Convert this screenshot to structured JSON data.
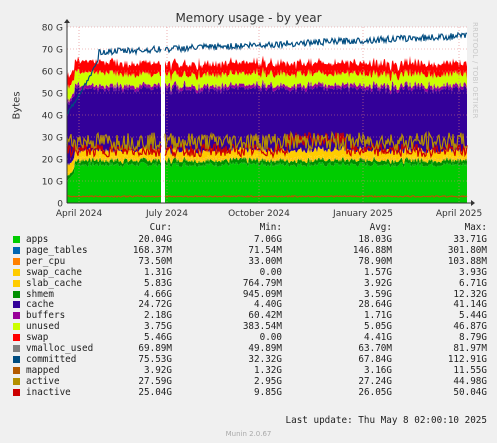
{
  "chart_data": {
    "type": "area",
    "title": "Memory usage - by year",
    "ylabel": "Bytes",
    "ylim": [
      0,
      80
    ],
    "y_unit": "G",
    "y_ticks": [
      "0",
      "10 G",
      "20 G",
      "30 G",
      "40 G",
      "50 G",
      "60 G",
      "70 G",
      "80 G"
    ],
    "x_ticks": [
      "April 2024",
      "July 2024",
      "October 2024",
      "January 2025",
      "April 2025"
    ],
    "grid": true,
    "series": [
      {
        "name": "apps",
        "color": "#00cc00",
        "avg": 18.0
      },
      {
        "name": "page_tables",
        "color": "#0066b3",
        "avg": 0.15
      },
      {
        "name": "per_cpu",
        "color": "#ff8000",
        "avg": 0.08
      },
      {
        "name": "swap_cache",
        "color": "#ffcc00",
        "avg": 1.57
      },
      {
        "name": "slab_cache",
        "color": "#ffcc00",
        "avg": 3.92
      },
      {
        "name": "shmem",
        "color": "#008f00",
        "avg": 3.59
      },
      {
        "name": "cache",
        "color": "#330099",
        "avg": 28.6
      },
      {
        "name": "buffers",
        "color": "#990099",
        "avg": 1.71
      },
      {
        "name": "unused",
        "color": "#ccff00",
        "avg": 5.05
      },
      {
        "name": "swap",
        "color": "#ff0000",
        "avg": 4.41
      },
      {
        "name": "vmalloc_used",
        "color": "#808080",
        "avg": 0.064
      },
      {
        "name": "committed",
        "color": "#004c80",
        "avg": 67.8
      },
      {
        "name": "mapped",
        "color": "#b35a00",
        "avg": 3.16
      },
      {
        "name": "active",
        "color": "#b38f00",
        "avg": 27.2
      },
      {
        "name": "inactive",
        "color": "#cc0000",
        "avg": 26.1
      }
    ]
  },
  "legend": {
    "headers": {
      "cur": "Cur:",
      "min": "Min:",
      "avg": "Avg:",
      "max": "Max:"
    },
    "rows": [
      {
        "name": "apps",
        "cur": "20.04G",
        "min": "7.06G",
        "avg": "18.03G",
        "max": "33.71G",
        "color": "#00cc00"
      },
      {
        "name": "page_tables",
        "cur": "168.37M",
        "min": "71.54M",
        "avg": "146.88M",
        "max": "301.80M",
        "color": "#0066b3"
      },
      {
        "name": "per_cpu",
        "cur": "73.50M",
        "min": "33.00M",
        "avg": "78.90M",
        "max": "103.88M",
        "color": "#ff8000"
      },
      {
        "name": "swap_cache",
        "cur": "1.31G",
        "min": "0.00",
        "avg": "1.57G",
        "max": "3.93G",
        "color": "#ffcc00"
      },
      {
        "name": "slab_cache",
        "cur": "5.83G",
        "min": "764.79M",
        "avg": "3.92G",
        "max": "6.71G",
        "color": "#ffcc00"
      },
      {
        "name": "shmem",
        "cur": "4.66G",
        "min": "945.09M",
        "avg": "3.59G",
        "max": "12.32G",
        "color": "#008f00"
      },
      {
        "name": "cache",
        "cur": "24.72G",
        "min": "4.40G",
        "avg": "28.64G",
        "max": "41.14G",
        "color": "#330099"
      },
      {
        "name": "buffers",
        "cur": "2.18G",
        "min": "60.42M",
        "avg": "1.71G",
        "max": "5.44G",
        "color": "#990099"
      },
      {
        "name": "unused",
        "cur": "3.75G",
        "min": "383.54M",
        "avg": "5.05G",
        "max": "46.87G",
        "color": "#ccff00"
      },
      {
        "name": "swap",
        "cur": "5.46G",
        "min": "0.00",
        "avg": "4.41G",
        "max": "8.79G",
        "color": "#ff0000"
      },
      {
        "name": "vmalloc_used",
        "cur": "69.89M",
        "min": "49.89M",
        "avg": "63.70M",
        "max": "81.97M",
        "color": "#808080"
      },
      {
        "name": "committed",
        "cur": "75.53G",
        "min": "32.32G",
        "avg": "67.84G",
        "max": "112.91G",
        "color": "#004c80"
      },
      {
        "name": "mapped",
        "cur": "3.92G",
        "min": "1.32G",
        "avg": "3.16G",
        "max": "11.55G",
        "color": "#b35a00"
      },
      {
        "name": "active",
        "cur": "27.59G",
        "min": "2.95G",
        "avg": "27.24G",
        "max": "44.98G",
        "color": "#b38f00"
      },
      {
        "name": "inactive",
        "cur": "25.04G",
        "min": "9.85G",
        "avg": "26.05G",
        "max": "50.04G",
        "color": "#cc0000"
      }
    ]
  },
  "footer": {
    "last_update": "Last update: Thu May  8 02:00:10 2025",
    "version": "Munin 2.0.67"
  },
  "watermark": "RRDTOOL / TOBI OETIKER"
}
